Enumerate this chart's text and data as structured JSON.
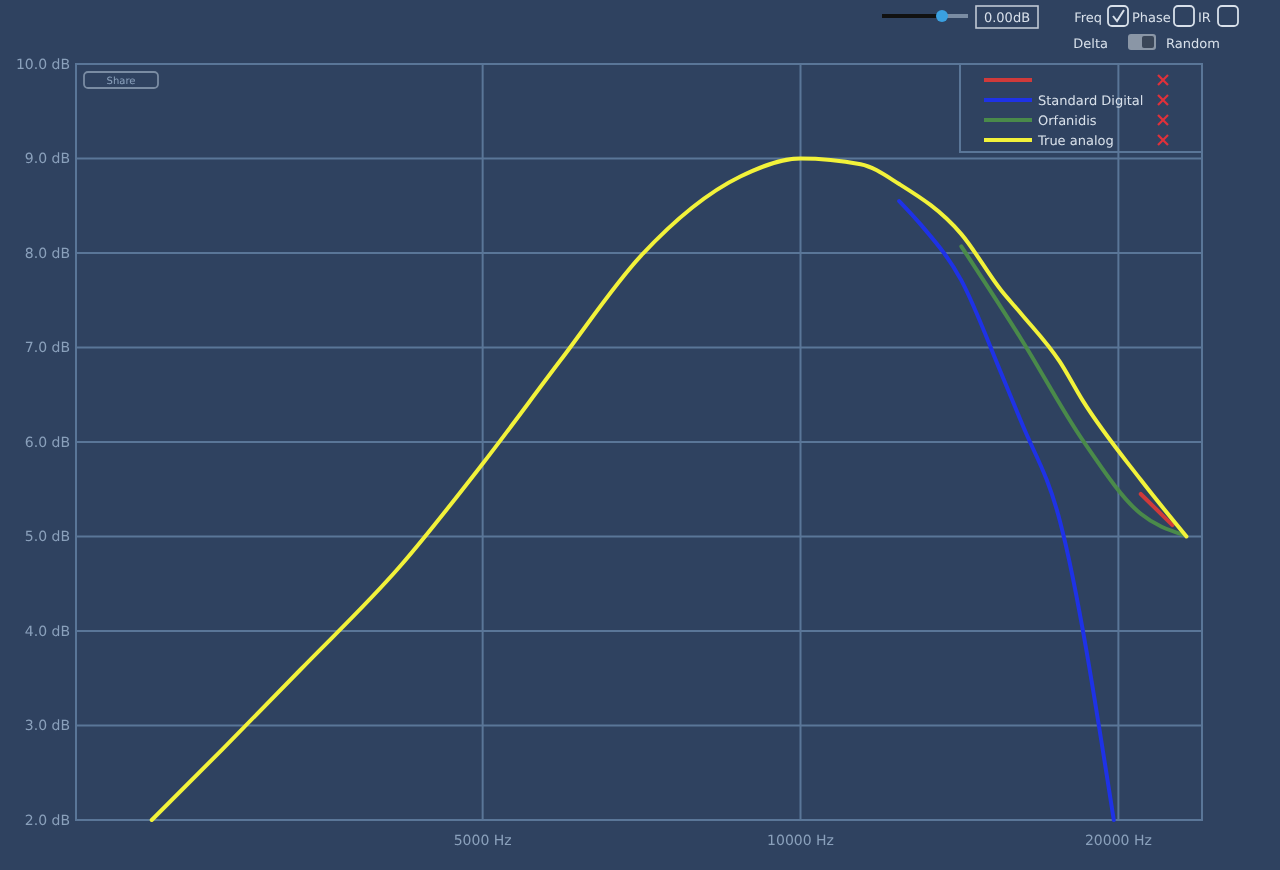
{
  "chart_data": {
    "type": "line",
    "log": "x",
    "grid": true,
    "legend": "top right",
    "xlim": [
      2060,
      24000
    ],
    "ylim": [
      2,
      10
    ],
    "xticks": [
      {
        "value": 5000,
        "label": "5000 Hz"
      },
      {
        "value": 10000,
        "label": "10000 Hz"
      },
      {
        "value": 20000,
        "label": "20000 Hz"
      }
    ],
    "yticks": [
      {
        "value": 2,
        "label": "2.0 dB"
      },
      {
        "value": 3,
        "label": "3.0 dB"
      },
      {
        "value": 4,
        "label": "4.0 dB"
      },
      {
        "value": 5,
        "label": "5.0 dB"
      },
      {
        "value": 6,
        "label": "6.0 dB"
      },
      {
        "value": 7,
        "label": "7.0 dB"
      },
      {
        "value": 8,
        "label": "8.0 dB"
      },
      {
        "value": 9,
        "label": "9.0 dB"
      },
      {
        "value": 10,
        "label": "10.0 dB"
      }
    ],
    "annotations": [
      "0.00dB",
      "Freq",
      "Phase",
      "IR",
      "Delta",
      "Random",
      "Share"
    ],
    "series": [
      {
        "color": "#d03a3a",
        "x": [
          21000,
          22500
        ],
        "values": [
          5.45,
          5.12
        ]
      },
      {
        "name": "Standard Digital",
        "color": "#1e32e6",
        "x": [
          12400,
          13000,
          14200,
          15500,
          16200,
          17600,
          19800
        ],
        "values": [
          8.55,
          8.3,
          7.71,
          6.72,
          6.2,
          5.17,
          2.0
        ]
      },
      {
        "name": "Orfanidis",
        "color": "#4a8a4a",
        "x": [
          14200,
          16200,
          18500,
          21000,
          23000
        ],
        "values": [
          8.07,
          7.08,
          6.02,
          5.24,
          5.02
        ]
      },
      {
        "name": "True analog",
        "color": "#f2f23a",
        "x": [
          2430,
          2830,
          3360,
          4180,
          5000,
          5930,
          7060,
          8770,
          10000,
          11400,
          12400,
          14200,
          15500,
          16200,
          17600,
          18500,
          21000,
          23200
        ],
        "values": [
          2.0,
          2.74,
          3.59,
          4.69,
          5.77,
          6.87,
          7.97,
          8.81,
          9.0,
          8.94,
          8.73,
          8.2,
          7.6,
          7.35,
          6.85,
          6.44,
          5.6,
          5.0
        ]
      }
    ]
  }
}
